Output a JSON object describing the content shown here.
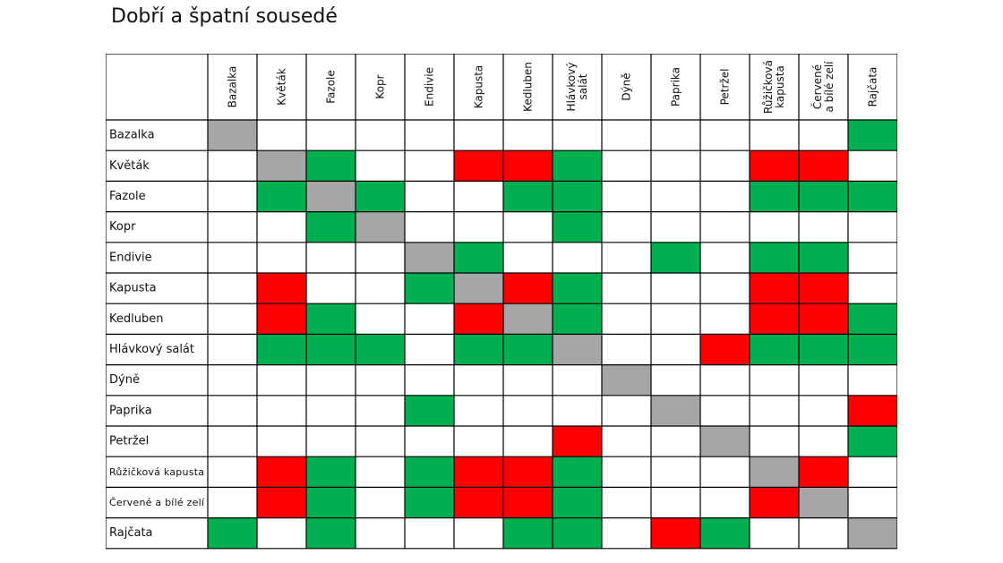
{
  "title": "Dobří a špatní sousedé",
  "colors": {
    "good": "#00b050",
    "bad": "#ff0000",
    "self": "#a6a6a6",
    "none": "#ffffff",
    "border": "#000000"
  },
  "chart_data": {
    "type": "heatmap",
    "title": "Dobří a špatní sousedé",
    "columns": [
      [
        "Bazalka"
      ],
      [
        "Květák"
      ],
      [
        "Fazole"
      ],
      [
        "Kopr"
      ],
      [
        "Endivie"
      ],
      [
        "Kapusta"
      ],
      [
        "Kedluben"
      ],
      [
        "Hlávkový",
        "salát"
      ],
      [
        "Dýně"
      ],
      [
        "Paprika"
      ],
      [
        "Petržel"
      ],
      [
        "Růžičková",
        "kapusta"
      ],
      [
        "Červené",
        "a bílé zelí"
      ],
      [
        "Rajčata"
      ]
    ],
    "rows": [
      "Bazalka",
      "Květák",
      "Fazole",
      "Kopr",
      "Endivie",
      "Kapusta",
      "Kedluben",
      "Hlávkový salát",
      "Dýně",
      "Paprika",
      "Petržel",
      "Růžičková kapusta",
      "Červené a bílé zelí",
      "Rajčata"
    ],
    "legend_codes": {
      "G": "good",
      "R": "bad",
      "S": "self",
      "-": "none"
    },
    "cells": [
      [
        "S",
        "-",
        "-",
        "-",
        "-",
        "-",
        "-",
        "-",
        "-",
        "-",
        "-",
        "-",
        "-",
        "G"
      ],
      [
        "-",
        "S",
        "G",
        "-",
        "-",
        "R",
        "R",
        "G",
        "-",
        "-",
        "-",
        "R",
        "R",
        "-"
      ],
      [
        "-",
        "G",
        "S",
        "G",
        "-",
        "-",
        "G",
        "G",
        "-",
        "-",
        "-",
        "G",
        "G",
        "G"
      ],
      [
        "-",
        "-",
        "G",
        "S",
        "-",
        "-",
        "-",
        "G",
        "-",
        "-",
        "-",
        "-",
        "-",
        "-"
      ],
      [
        "-",
        "-",
        "-",
        "-",
        "S",
        "G",
        "-",
        "-",
        "-",
        "G",
        "-",
        "G",
        "G",
        "-"
      ],
      [
        "-",
        "R",
        "-",
        "-",
        "G",
        "S",
        "R",
        "G",
        "-",
        "-",
        "-",
        "R",
        "R",
        "-"
      ],
      [
        "-",
        "R",
        "G",
        "-",
        "-",
        "R",
        "S",
        "G",
        "-",
        "-",
        "-",
        "R",
        "R",
        "G"
      ],
      [
        "-",
        "G",
        "G",
        "G",
        "-",
        "G",
        "G",
        "S",
        "-",
        "-",
        "R",
        "G",
        "G",
        "G"
      ],
      [
        "-",
        "-",
        "-",
        "-",
        "-",
        "-",
        "-",
        "-",
        "S",
        "-",
        "-",
        "-",
        "-",
        "-"
      ],
      [
        "-",
        "-",
        "-",
        "-",
        "G",
        "-",
        "-",
        "-",
        "-",
        "S",
        "-",
        "-",
        "-",
        "R"
      ],
      [
        "-",
        "-",
        "-",
        "-",
        "-",
        "-",
        "-",
        "R",
        "-",
        "-",
        "S",
        "-",
        "-",
        "G"
      ],
      [
        "-",
        "R",
        "G",
        "-",
        "G",
        "R",
        "R",
        "G",
        "-",
        "-",
        "-",
        "S",
        "R",
        "-"
      ],
      [
        "-",
        "R",
        "G",
        "-",
        "G",
        "R",
        "R",
        "G",
        "-",
        "-",
        "-",
        "R",
        "S",
        "-"
      ],
      [
        "G",
        "-",
        "G",
        "-",
        "-",
        "-",
        "G",
        "G",
        "-",
        "R",
        "G",
        "-",
        "-",
        "S"
      ]
    ]
  }
}
